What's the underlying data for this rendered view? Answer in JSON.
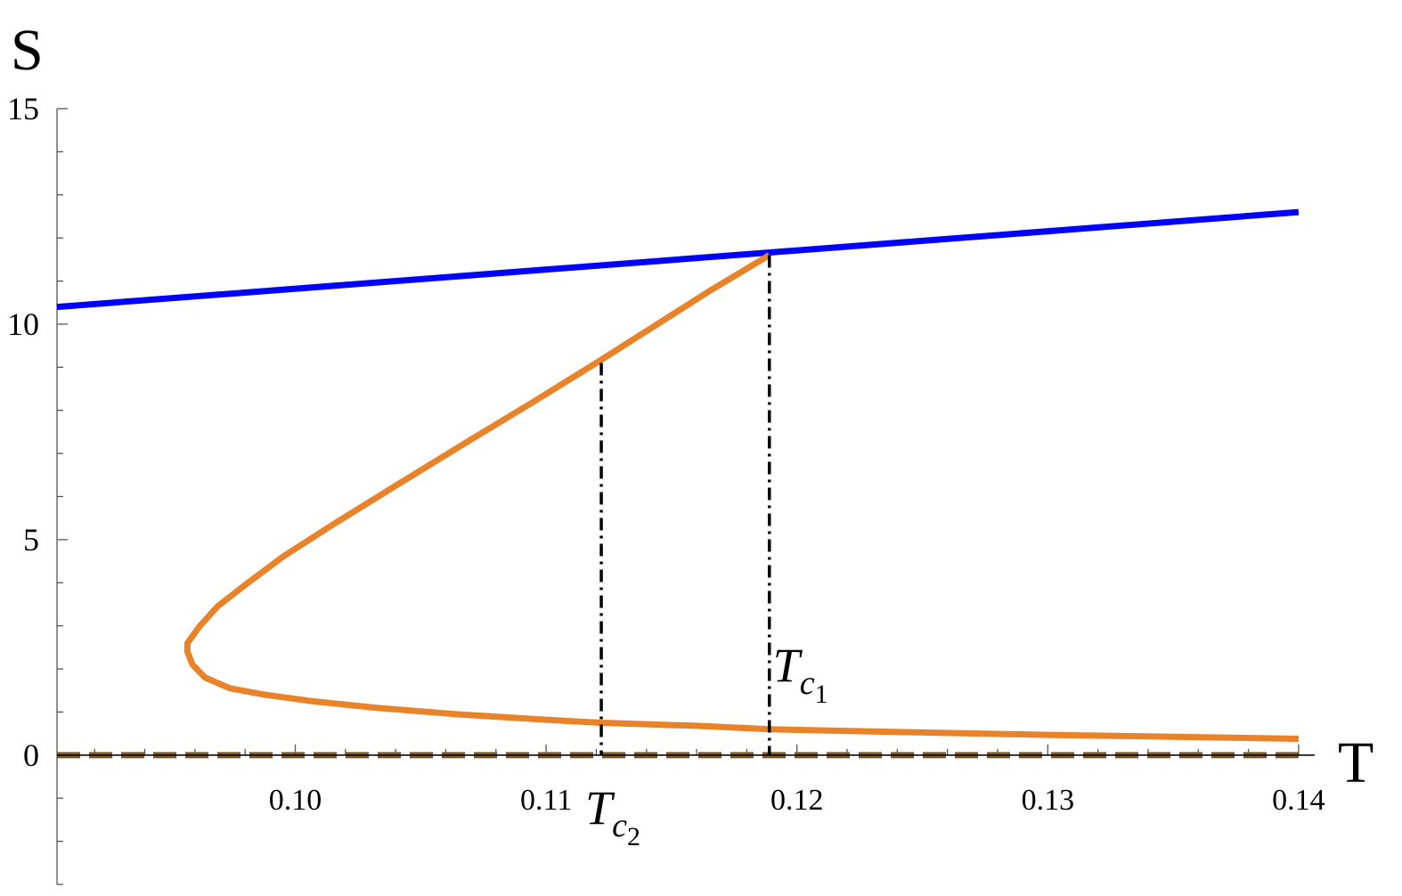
{
  "chart_data": {
    "type": "line",
    "xlabel": "T",
    "ylabel": "S",
    "xlim": [
      0.0905,
      0.1405
    ],
    "ylim": [
      -3,
      15
    ],
    "x_ticks": [
      "0.10",
      "0.11",
      "0.12",
      "0.13",
      "0.14"
    ],
    "x_tick_values": [
      0.1,
      0.11,
      0.12,
      0.13,
      0.14
    ],
    "y_ticks": [
      "0",
      "5",
      "10",
      "15"
    ],
    "y_tick_values": [
      0,
      5,
      10,
      15
    ],
    "grid": false,
    "series": [
      {
        "color": "#0000ff",
        "style": "solid",
        "x": [
          0.0905,
          0.14
        ],
        "y": [
          10.4,
          12.6
        ]
      },
      {
        "color": "#e8832a",
        "style": "solid",
        "x": [
          0.1189,
          0.1166,
          0.1143,
          0.112,
          0.1095,
          0.1068,
          0.104,
          0.1015,
          0.0995,
          0.098,
          0.0969,
          0.0962,
          0.0957,
          0.0957,
          0.0959,
          0.0964,
          0.0974,
          0.0988,
          0.1007,
          0.1032,
          0.1064,
          0.11,
          0.1122,
          0.116,
          0.1189,
          0.123,
          0.13,
          0.14
        ],
        "y": [
          11.6,
          10.8,
          9.95,
          9.1,
          8.2,
          7.25,
          6.25,
          5.35,
          4.6,
          3.95,
          3.45,
          3.0,
          2.6,
          2.4,
          2.1,
          1.8,
          1.55,
          1.4,
          1.25,
          1.1,
          0.95,
          0.82,
          0.75,
          0.68,
          0.6,
          0.55,
          0.47,
          0.38
        ]
      },
      {
        "color": "#7a5a2e",
        "style": "dashed",
        "x": [
          0.0905,
          0.14
        ],
        "y": [
          0,
          0
        ]
      }
    ],
    "annotations": [
      {
        "label": "T",
        "sub": "c",
        "subsub": "1",
        "x": 0.1189,
        "y_top": 11.6
      },
      {
        "label": "T",
        "sub": "c",
        "subsub": "2",
        "x": 0.1122,
        "y_top": 9.1
      }
    ]
  }
}
